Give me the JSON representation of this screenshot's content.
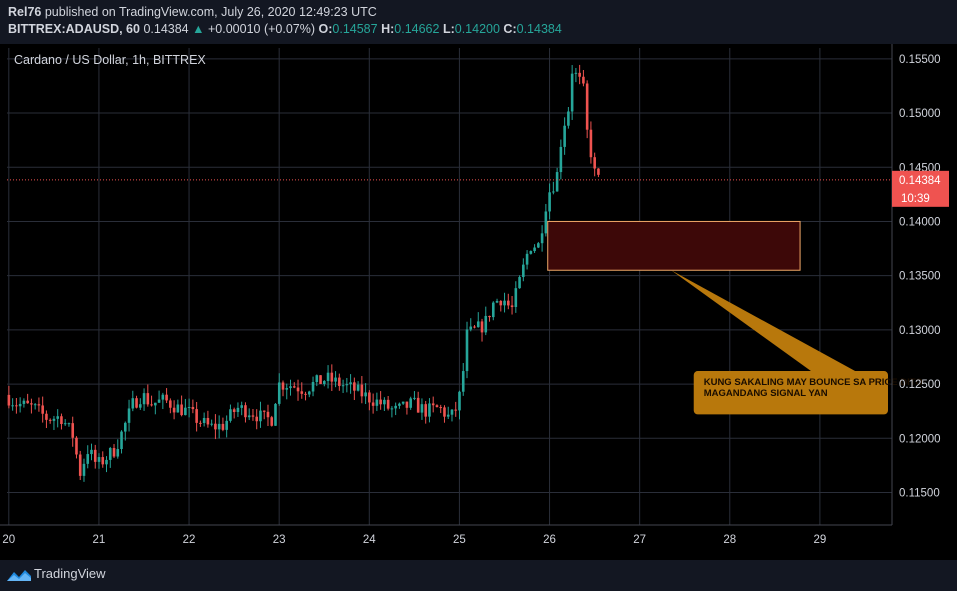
{
  "header": {
    "publisher": "Rel76",
    "published_text": "published on TradingView.com, July 26, 2020 12:49:23 UTC",
    "symbol": "BITTREX:ADAUSD, 60",
    "last": "0.14384",
    "change_arrow": "▲",
    "change": "+0.00010 (+0.07%)",
    "o_label": "O:",
    "o_value": "0.14587",
    "h_label": "H:",
    "h_value": "0.14662",
    "l_label": "L:",
    "l_value": "0.14200",
    "c_label": "C:",
    "c_value": "0.14384"
  },
  "footer": {
    "brand": "TradingView",
    "logo_icon": "tradingview-logo-icon"
  },
  "colors": {
    "up": "#26a69a",
    "down": "#ef5350",
    "background": "#000000",
    "panel": "#131722",
    "zone_fill": "#3d0808",
    "zone_border": "#f0a868",
    "note_fill": "#b8780c"
  },
  "chart_data": {
    "type": "candlestick",
    "title": "Cardano / US Dollar, 1h, BITTREX",
    "xlabel": "",
    "ylabel": "",
    "ylim": [
      0.112,
      0.156
    ],
    "xlim": [
      19.98,
      29.8
    ],
    "y_ticks": [
      "0.11500",
      "0.12000",
      "0.12500",
      "0.13000",
      "0.13500",
      "0.14000",
      "0.14500",
      "0.15000",
      "0.15500"
    ],
    "x_ticks": [
      {
        "label": "20",
        "day": 20
      },
      {
        "label": "21",
        "day": 21
      },
      {
        "label": "22",
        "day": 22
      },
      {
        "label": "23",
        "day": 23
      },
      {
        "label": "24",
        "day": 24
      },
      {
        "label": "25",
        "day": 25
      },
      {
        "label": "26",
        "day": 26
      },
      {
        "label": "27",
        "day": 27
      },
      {
        "label": "28",
        "day": 28
      },
      {
        "label": "29",
        "day": 29
      }
    ],
    "grid": true,
    "last_price": {
      "value": 0.14384,
      "label": "0.14384",
      "countdown": "10:39"
    },
    "close_path": [
      [
        19.98,
        0.124
      ],
      [
        20.1,
        0.1232
      ],
      [
        20.3,
        0.1228
      ],
      [
        20.45,
        0.1218
      ],
      [
        20.6,
        0.122
      ],
      [
        20.75,
        0.12
      ],
      [
        20.8,
        0.1165
      ],
      [
        20.9,
        0.119
      ],
      [
        21.0,
        0.1175
      ],
      [
        21.1,
        0.1182
      ],
      [
        21.2,
        0.119
      ],
      [
        21.3,
        0.121
      ],
      [
        21.4,
        0.1232
      ],
      [
        21.5,
        0.124
      ],
      [
        21.6,
        0.1232
      ],
      [
        21.75,
        0.1235
      ],
      [
        21.9,
        0.1228
      ],
      [
        22.0,
        0.1225
      ],
      [
        22.1,
        0.1218
      ],
      [
        22.25,
        0.121
      ],
      [
        22.4,
        0.1212
      ],
      [
        22.55,
        0.1228
      ],
      [
        22.7,
        0.1225
      ],
      [
        22.85,
        0.1218
      ],
      [
        22.95,
        0.1218
      ],
      [
        23.0,
        0.125
      ],
      [
        23.1,
        0.125
      ],
      [
        23.2,
        0.1248
      ],
      [
        23.3,
        0.1245
      ],
      [
        23.4,
        0.125
      ],
      [
        23.55,
        0.1255
      ],
      [
        23.7,
        0.125
      ],
      [
        23.85,
        0.1245
      ],
      [
        24.0,
        0.1238
      ],
      [
        24.15,
        0.1232
      ],
      [
        24.3,
        0.1225
      ],
      [
        24.4,
        0.1228
      ],
      [
        24.5,
        0.1232
      ],
      [
        24.65,
        0.1225
      ],
      [
        24.8,
        0.1228
      ],
      [
        24.92,
        0.1218
      ],
      [
        25.0,
        0.123
      ],
      [
        25.05,
        0.125
      ],
      [
        25.1,
        0.1295
      ],
      [
        25.2,
        0.13
      ],
      [
        25.3,
        0.1305
      ],
      [
        25.4,
        0.1325
      ],
      [
        25.5,
        0.133
      ],
      [
        25.6,
        0.1318
      ],
      [
        25.7,
        0.1348
      ],
      [
        25.8,
        0.1378
      ],
      [
        25.9,
        0.1378
      ],
      [
        26.0,
        0.1425
      ],
      [
        26.1,
        0.144
      ],
      [
        26.17,
        0.149
      ],
      [
        26.22,
        0.1495
      ],
      [
        26.27,
        0.154
      ],
      [
        26.35,
        0.153
      ],
      [
        26.4,
        0.152
      ],
      [
        26.45,
        0.147
      ],
      [
        26.5,
        0.146
      ],
      [
        26.53,
        0.14384
      ]
    ],
    "annotations": [
      {
        "type": "zone",
        "x": [
          25.98,
          28.78
        ],
        "y": [
          0.1355,
          0.14
        ]
      },
      {
        "type": "callout",
        "text_lines": [
          "KUNG SAKALING MAY BOUNCE SA PRICE DITO",
          "MAGANDANG SIGNAL YAN"
        ],
        "pointer": [
          27.35,
          0.1355
        ],
        "x": [
          27.6,
          30.5
        ],
        "y": [
          0.1222,
          0.1262
        ]
      }
    ]
  }
}
